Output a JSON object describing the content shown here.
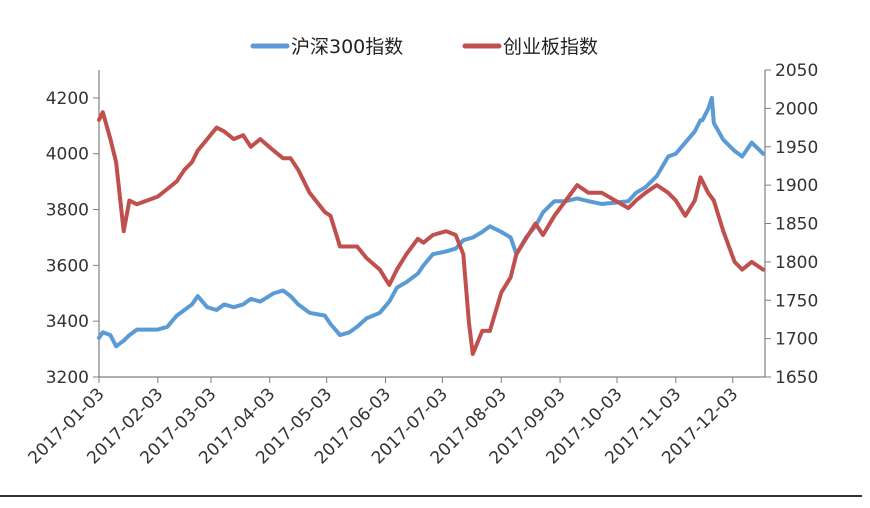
{
  "colors": {
    "series_1": "#5B9BD5",
    "series_2": "#C0504D",
    "axis": "#7f7f7f",
    "bottom_rule": "#333333"
  },
  "chart_data": {
    "type": "line",
    "grid": false,
    "legend_position": "top",
    "x_axis": {
      "type": "date",
      "range": [
        "2017-01-03",
        "2017-12-20"
      ],
      "tick_labels": [
        "2017-01-03",
        "2017-02-03",
        "2017-03-03",
        "2017-04-03",
        "2017-05-03",
        "2017-06-03",
        "2017-07-03",
        "2017-08-03",
        "2017-09-03",
        "2017-10-03",
        "2017-11-03",
        "2017-12-03"
      ]
    },
    "y_left": {
      "range": [
        3200,
        4300
      ],
      "tick_labels": [
        "3200",
        "3400",
        "3600",
        "3800",
        "4000",
        "4200"
      ]
    },
    "y_right": {
      "range": [
        1650,
        2050
      ],
      "tick_labels": [
        "1650",
        "1700",
        "1750",
        "1800",
        "1850",
        "1900",
        "1950",
        "2000",
        "2050"
      ]
    },
    "series": [
      {
        "name": "沪深300指数",
        "axis": "left",
        "x": [
          "2017-01-03",
          "2017-01-05",
          "2017-01-09",
          "2017-01-12",
          "2017-01-16",
          "2017-01-19",
          "2017-01-23",
          "2017-02-03",
          "2017-02-08",
          "2017-02-13",
          "2017-02-17",
          "2017-02-21",
          "2017-02-24",
          "2017-03-01",
          "2017-03-06",
          "2017-03-10",
          "2017-03-15",
          "2017-03-20",
          "2017-03-24",
          "2017-03-29",
          "2017-04-05",
          "2017-04-10",
          "2017-04-14",
          "2017-04-18",
          "2017-04-24",
          "2017-05-02",
          "2017-05-05",
          "2017-05-10",
          "2017-05-15",
          "2017-05-19",
          "2017-05-24",
          "2017-05-31",
          "2017-06-05",
          "2017-06-09",
          "2017-06-14",
          "2017-06-20",
          "2017-06-23",
          "2017-06-28",
          "2017-07-05",
          "2017-07-10",
          "2017-07-14",
          "2017-07-19",
          "2017-07-24",
          "2017-07-28",
          "2017-08-03",
          "2017-08-08",
          "2017-08-11",
          "2017-08-16",
          "2017-08-21",
          "2017-08-25",
          "2017-08-31",
          "2017-09-06",
          "2017-09-12",
          "2017-09-18",
          "2017-09-25",
          "2017-10-09",
          "2017-10-13",
          "2017-10-18",
          "2017-10-24",
          "2017-10-30",
          "2017-11-03",
          "2017-11-08",
          "2017-11-13",
          "2017-11-16",
          "2017-11-17",
          "2017-11-20",
          "2017-11-22",
          "2017-11-23",
          "2017-11-28",
          "2017-12-04",
          "2017-12-08",
          "2017-12-13",
          "2017-12-19"
        ],
        "values": [
          3340,
          3360,
          3350,
          3310,
          3330,
          3350,
          3370,
          3370,
          3380,
          3420,
          3440,
          3460,
          3490,
          3450,
          3440,
          3460,
          3450,
          3460,
          3480,
          3470,
          3500,
          3510,
          3490,
          3460,
          3430,
          3420,
          3390,
          3350,
          3360,
          3380,
          3410,
          3430,
          3470,
          3520,
          3540,
          3570,
          3600,
          3640,
          3650,
          3660,
          3690,
          3700,
          3720,
          3740,
          3720,
          3700,
          3640,
          3700,
          3740,
          3790,
          3830,
          3830,
          3840,
          3830,
          3820,
          3830,
          3860,
          3880,
          3920,
          3990,
          4000,
          4040,
          4080,
          4120,
          4120,
          4160,
          4200,
          4110,
          4050,
          4010,
          3990,
          4040,
          4000
        ]
      },
      {
        "name": "创业板指数",
        "axis": "right",
        "x": [
          "2017-01-03",
          "2017-01-05",
          "2017-01-09",
          "2017-01-12",
          "2017-01-16",
          "2017-01-19",
          "2017-01-23",
          "2017-02-03",
          "2017-02-08",
          "2017-02-13",
          "2017-02-17",
          "2017-02-21",
          "2017-02-24",
          "2017-03-01",
          "2017-03-06",
          "2017-03-10",
          "2017-03-15",
          "2017-03-20",
          "2017-03-24",
          "2017-03-29",
          "2017-04-05",
          "2017-04-10",
          "2017-04-14",
          "2017-04-18",
          "2017-04-24",
          "2017-05-02",
          "2017-05-05",
          "2017-05-10",
          "2017-05-15",
          "2017-05-19",
          "2017-05-24",
          "2017-05-31",
          "2017-06-05",
          "2017-06-09",
          "2017-06-14",
          "2017-06-20",
          "2017-06-23",
          "2017-06-28",
          "2017-07-05",
          "2017-07-10",
          "2017-07-14",
          "2017-07-17",
          "2017-07-19",
          "2017-07-24",
          "2017-07-28",
          "2017-08-03",
          "2017-08-08",
          "2017-08-11",
          "2017-08-16",
          "2017-08-21",
          "2017-08-25",
          "2017-08-31",
          "2017-09-06",
          "2017-09-12",
          "2017-09-18",
          "2017-09-25",
          "2017-10-09",
          "2017-10-13",
          "2017-10-18",
          "2017-10-24",
          "2017-10-30",
          "2017-11-03",
          "2017-11-08",
          "2017-11-13",
          "2017-11-16",
          "2017-11-20",
          "2017-11-23",
          "2017-11-28",
          "2017-12-04",
          "2017-12-08",
          "2017-12-13",
          "2017-12-19"
        ],
        "values": [
          1985,
          1995,
          1960,
          1930,
          1840,
          1880,
          1875,
          1885,
          1895,
          1905,
          1920,
          1930,
          1945,
          1960,
          1975,
          1970,
          1960,
          1965,
          1950,
          1960,
          1945,
          1935,
          1935,
          1920,
          1890,
          1865,
          1860,
          1820,
          1820,
          1820,
          1805,
          1790,
          1770,
          1790,
          1810,
          1830,
          1825,
          1835,
          1840,
          1835,
          1810,
          1720,
          1680,
          1710,
          1710,
          1760,
          1780,
          1810,
          1830,
          1850,
          1835,
          1860,
          1880,
          1900,
          1890,
          1890,
          1870,
          1880,
          1890,
          1900,
          1890,
          1880,
          1860,
          1880,
          1910,
          1890,
          1880,
          1840,
          1800,
          1790,
          1800,
          1790
        ]
      }
    ]
  }
}
